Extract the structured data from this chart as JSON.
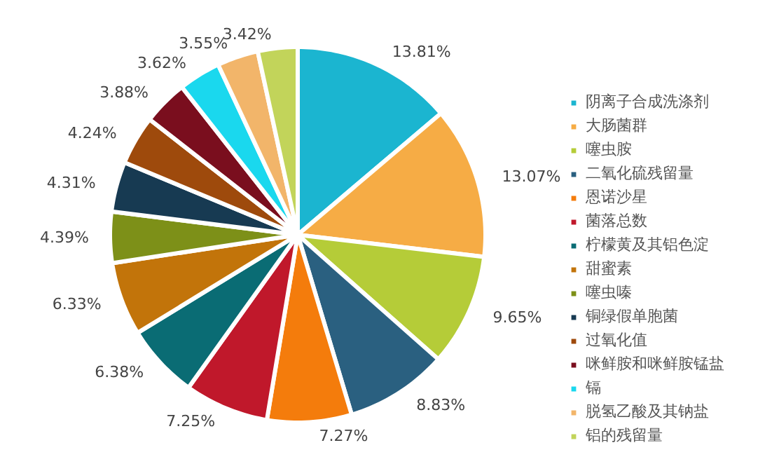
{
  "chart_data": {
    "type": "pie",
    "categories": [
      "阴离子合成洗涤剂",
      "大肠菌群",
      "噻虫胺",
      "二氧化硫残留量",
      "恩诺沙星",
      "菌落总数",
      "柠檬黄及其铝色淀",
      "甜蜜素",
      "噻虫嗪",
      "铜绿假单胞菌",
      "过氧化值",
      "咪鲜胺和咪鲜胺锰盐",
      "镉",
      "脱氢乙酸及其钠盐",
      "铝的残留量"
    ],
    "values": [
      13.81,
      13.07,
      9.65,
      8.83,
      7.27,
      7.25,
      6.38,
      6.33,
      4.39,
      4.31,
      4.24,
      3.88,
      3.62,
      3.55,
      3.42
    ],
    "colors": [
      "#1bb5d0",
      "#f6ac45",
      "#b5cc38",
      "#2a6080",
      "#f47c0c",
      "#c0182b",
      "#0a6c74",
      "#c2740a",
      "#7d9018",
      "#173a52",
      "#9e4a0c",
      "#7a0e1e",
      "#1ad8ee",
      "#f2b56a",
      "#c2d45a"
    ],
    "value_labels": [
      "13.81%",
      "13.07%",
      "9.65%",
      "8.83%",
      "7.27%",
      "7.25%",
      "6.38%",
      "6.33%",
      "4.39%",
      "4.31%",
      "4.24%",
      "3.88%",
      "3.62%",
      "3.55%",
      "3.42%"
    ],
    "legend": "right"
  }
}
